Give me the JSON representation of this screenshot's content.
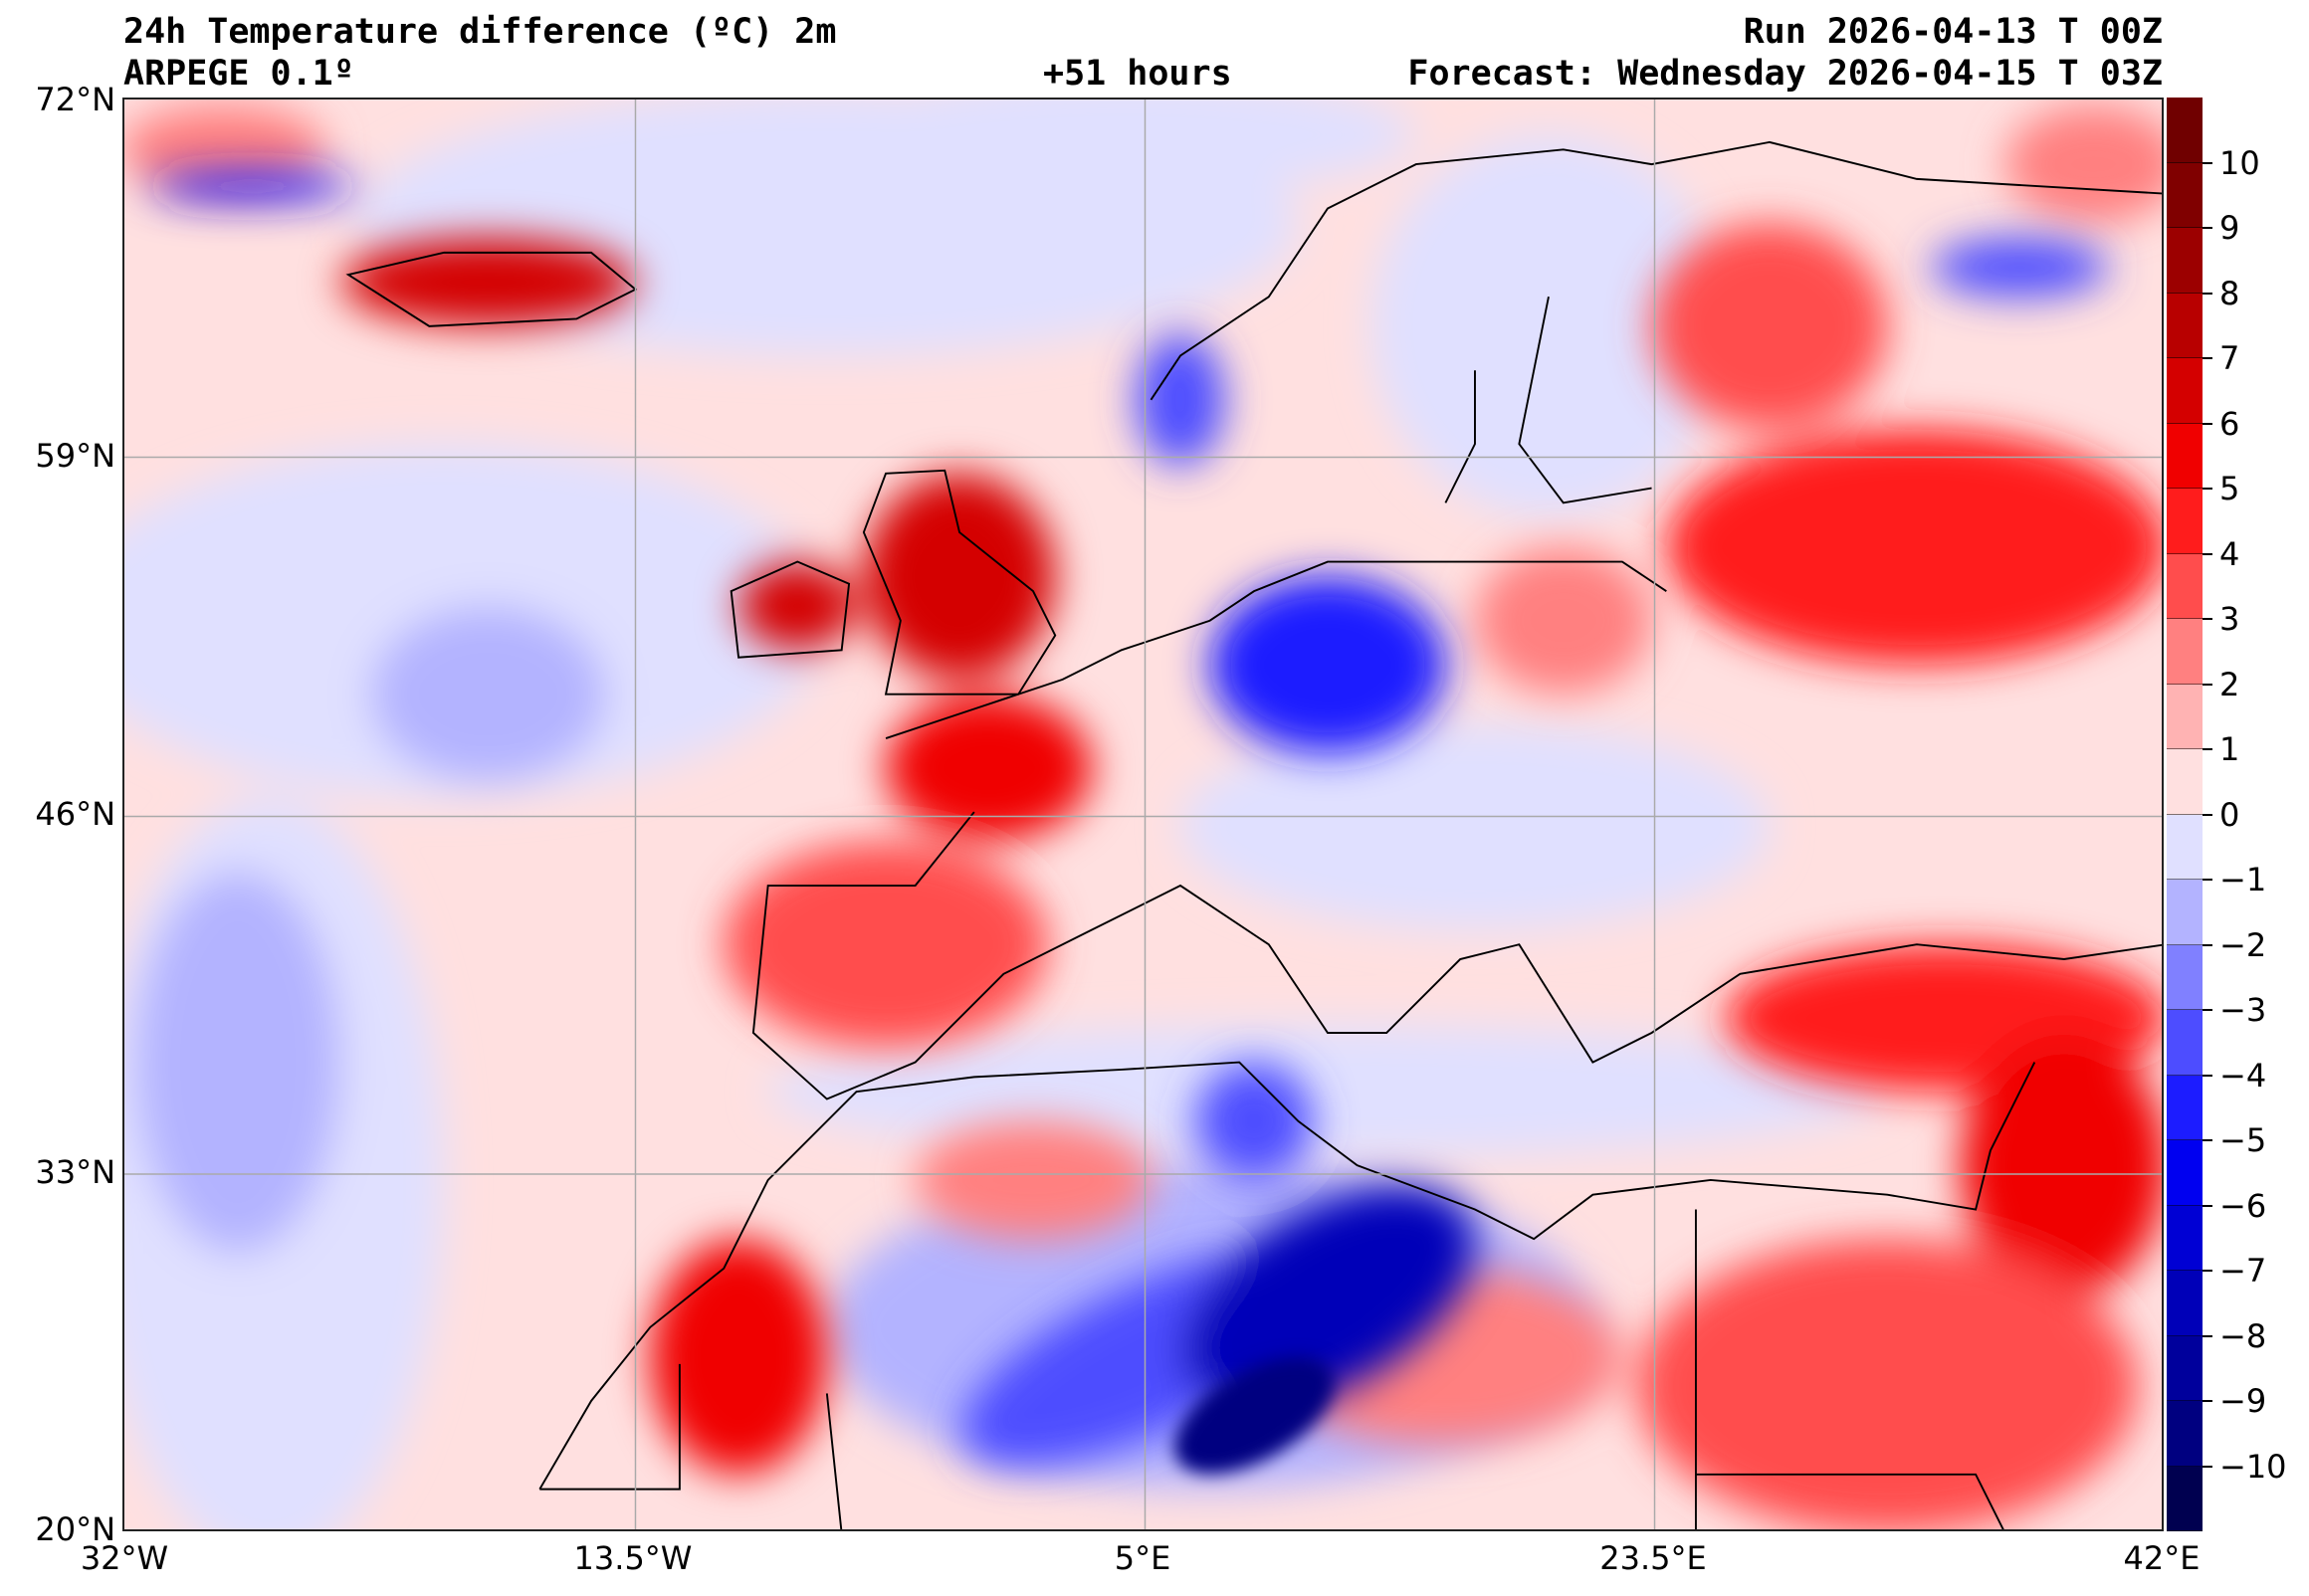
{
  "header": {
    "title": "24h Temperature difference (ºC) 2m",
    "model": "ARPEGE 0.1º",
    "lead_time": "+51 hours",
    "run": "Run 2026-04-13 T 00Z",
    "forecast": "Forecast: Wednesday 2026-04-15 T 03Z"
  },
  "axes": {
    "lat_labels": [
      "72°N",
      "59°N",
      "46°N",
      "33°N",
      "20°N"
    ],
    "lon_labels": [
      "32°W",
      "13.5°W",
      "5°E",
      "23.5°E",
      "42°E"
    ]
  },
  "colorbar": {
    "ticks": [
      "10",
      "9",
      "8",
      "7",
      "6",
      "5",
      "4",
      "3",
      "2",
      "1",
      "0",
      "−1",
      "−2",
      "−3",
      "−4",
      "−5",
      "−6",
      "−7",
      "−8",
      "−9",
      "−10"
    ],
    "colors": [
      "#700000",
      "#800000",
      "#9c0000",
      "#b80000",
      "#d40000",
      "#f00000",
      "#ff1c1c",
      "#ff4d4d",
      "#ff8080",
      "#ffb3b3",
      "#ffe0e0",
      "#e0e0ff",
      "#b3b3ff",
      "#8080ff",
      "#4d4dff",
      "#1c1cff",
      "#0000f0",
      "#0000d4",
      "#0000b8",
      "#00009c",
      "#000080",
      "#000050"
    ]
  }
}
